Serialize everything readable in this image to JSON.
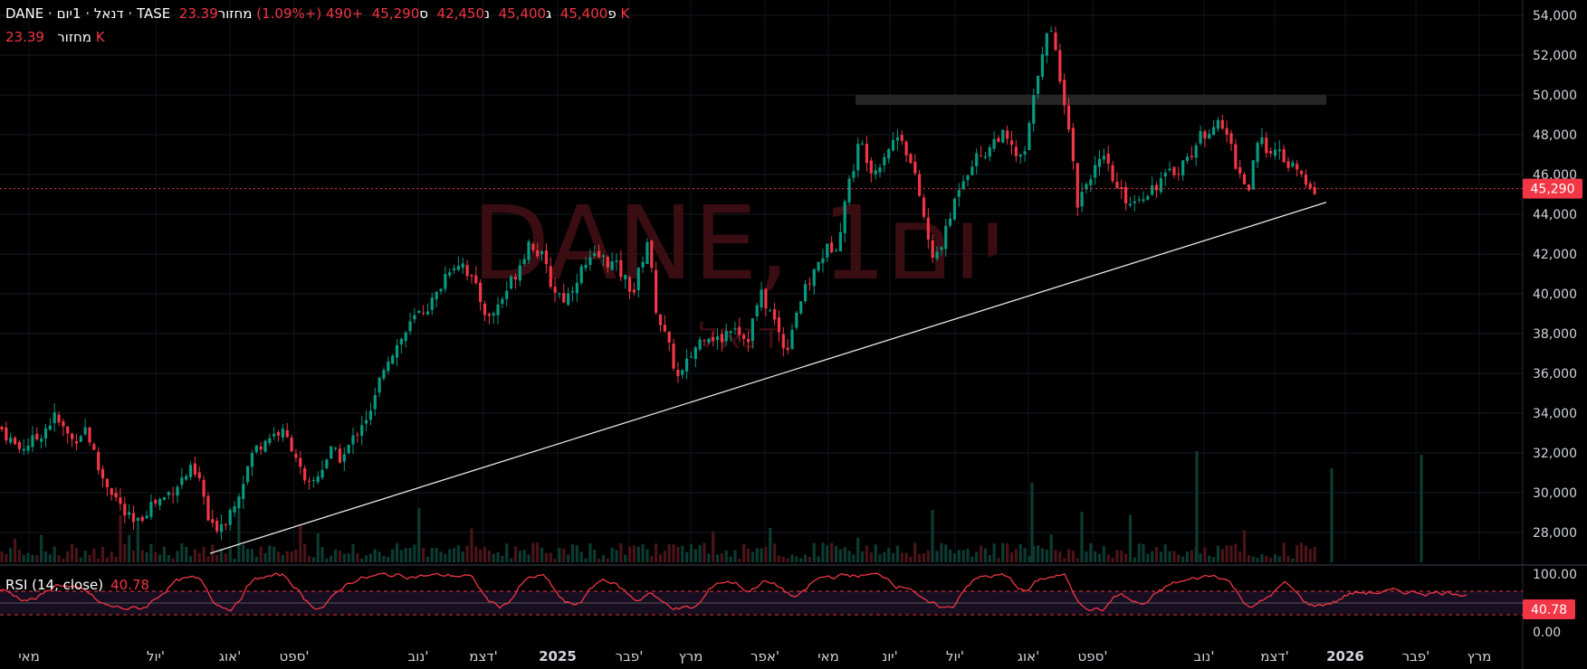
{
  "header": {
    "symbol": "DANE",
    "sep": "·",
    "name": "דנאל",
    "interval": "1יום",
    "exchange": "TASE",
    "open_label": "פ",
    "open": "45,400",
    "high_label": "ג",
    "high": "45,400",
    "low_label": "נ",
    "low": "42,450",
    "close_label": "ס",
    "close": "45,290",
    "change": "+490 (+1.09%)",
    "volume_label": "מחזור",
    "volume": "23.39 K"
  },
  "volume_line": {
    "label": "מחזור",
    "value": "23.39 K"
  },
  "watermark": {
    "title": "DANE, 1יום",
    "subtitle": "דנאל"
  },
  "price_badge": "45,290",
  "rsi": {
    "label": "RSI (14, close)",
    "value": "40.78",
    "badge": "40.78",
    "axis": [
      "100.00",
      "0.00"
    ]
  },
  "colors": {
    "up": "#089981",
    "down": "#f23645",
    "rsi": "#f23645",
    "bg": "#000000"
  },
  "chart_data": {
    "type": "candlestick",
    "symbol": "DANE",
    "y_axis_ticks": [
      "54,000",
      "52,000",
      "50,000",
      "48,000",
      "46,000",
      "44,000",
      "42,000",
      "40,000",
      "38,000",
      "36,000",
      "34,000",
      "32,000",
      "30,000",
      "28,000"
    ],
    "ylim": [
      26000,
      54500
    ],
    "x_axis_labels": [
      "מאי",
      "יול'",
      "אוג'",
      "ספט'",
      "נוב'",
      "דצמ'",
      "2025",
      "פבר'",
      "מרץ",
      "אפר'",
      "מאי",
      "יונ'",
      "יול'",
      "אוג'",
      "ספט'",
      "נוב'",
      "דצמ'",
      "2026",
      "פבר'",
      "מרץ"
    ],
    "price_path": [
      {
        "x": 0,
        "y": 33300
      },
      {
        "x": 20,
        "y": 32200
      },
      {
        "x": 40,
        "y": 32700
      },
      {
        "x": 60,
        "y": 33800
      },
      {
        "x": 80,
        "y": 32600
      },
      {
        "x": 95,
        "y": 33300
      },
      {
        "x": 110,
        "y": 31000
      },
      {
        "x": 125,
        "y": 30000
      },
      {
        "x": 138,
        "y": 28900
      },
      {
        "x": 150,
        "y": 28300
      },
      {
        "x": 165,
        "y": 29400
      },
      {
        "x": 180,
        "y": 29700
      },
      {
        "x": 195,
        "y": 30400
      },
      {
        "x": 210,
        "y": 31100
      },
      {
        "x": 222,
        "y": 30500
      },
      {
        "x": 232,
        "y": 28100
      },
      {
        "x": 250,
        "y": 28700
      },
      {
        "x": 265,
        "y": 30200
      },
      {
        "x": 280,
        "y": 32100
      },
      {
        "x": 295,
        "y": 32800
      },
      {
        "x": 310,
        "y": 33100
      },
      {
        "x": 325,
        "y": 32200
      },
      {
        "x": 338,
        "y": 30100
      },
      {
        "x": 350,
        "y": 30800
      },
      {
        "x": 365,
        "y": 32100
      },
      {
        "x": 378,
        "y": 31700
      },
      {
        "x": 390,
        "y": 32700
      },
      {
        "x": 400,
        "y": 33600
      },
      {
        "x": 410,
        "y": 34000
      },
      {
        "x": 425,
        "y": 36600
      },
      {
        "x": 440,
        "y": 37500
      },
      {
        "x": 460,
        "y": 38900
      },
      {
        "x": 480,
        "y": 39700
      },
      {
        "x": 495,
        "y": 41300
      },
      {
        "x": 510,
        "y": 41700
      },
      {
        "x": 525,
        "y": 40300
      },
      {
        "x": 540,
        "y": 38700
      },
      {
        "x": 555,
        "y": 39800
      },
      {
        "x": 570,
        "y": 41100
      },
      {
        "x": 585,
        "y": 42700
      },
      {
        "x": 600,
        "y": 41700
      },
      {
        "x": 610,
        "y": 40300
      },
      {
        "x": 625,
        "y": 39700
      },
      {
        "x": 640,
        "y": 41100
      },
      {
        "x": 660,
        "y": 41900
      },
      {
        "x": 680,
        "y": 41400
      },
      {
        "x": 700,
        "y": 40100
      },
      {
        "x": 715,
        "y": 42700
      },
      {
        "x": 725,
        "y": 39200
      },
      {
        "x": 740,
        "y": 37100
      },
      {
        "x": 750,
        "y": 35600
      },
      {
        "x": 765,
        "y": 37100
      },
      {
        "x": 780,
        "y": 38100
      },
      {
        "x": 795,
        "y": 37600
      },
      {
        "x": 810,
        "y": 38600
      },
      {
        "x": 825,
        "y": 37600
      },
      {
        "x": 840,
        "y": 40000
      },
      {
        "x": 855,
        "y": 38700
      },
      {
        "x": 868,
        "y": 37100
      },
      {
        "x": 880,
        "y": 39200
      },
      {
        "x": 895,
        "y": 40700
      },
      {
        "x": 910,
        "y": 42100
      },
      {
        "x": 925,
        "y": 42600
      },
      {
        "x": 935,
        "y": 45100
      },
      {
        "x": 950,
        "y": 47700
      },
      {
        "x": 965,
        "y": 46100
      },
      {
        "x": 980,
        "y": 47300
      },
      {
        "x": 995,
        "y": 48100
      },
      {
        "x": 1005,
        "y": 46700
      },
      {
        "x": 1015,
        "y": 45100
      },
      {
        "x": 1030,
        "y": 41600
      },
      {
        "x": 1045,
        "y": 43100
      },
      {
        "x": 1060,
        "y": 45600
      },
      {
        "x": 1075,
        "y": 46700
      },
      {
        "x": 1090,
        "y": 47200
      },
      {
        "x": 1105,
        "y": 48100
      },
      {
        "x": 1120,
        "y": 47100
      },
      {
        "x": 1130,
        "y": 46600
      },
      {
        "x": 1140,
        "y": 49200
      },
      {
        "x": 1150,
        "y": 52200
      },
      {
        "x": 1160,
        "y": 53300
      },
      {
        "x": 1170,
        "y": 51200
      },
      {
        "x": 1180,
        "y": 48700
      },
      {
        "x": 1190,
        "y": 44600
      },
      {
        "x": 1205,
        "y": 46100
      },
      {
        "x": 1220,
        "y": 46700
      },
      {
        "x": 1235,
        "y": 45100
      },
      {
        "x": 1250,
        "y": 44600
      },
      {
        "x": 1265,
        "y": 45100
      },
      {
        "x": 1280,
        "y": 45600
      },
      {
        "x": 1295,
        "y": 46100
      },
      {
        "x": 1310,
        "y": 46700
      },
      {
        "x": 1325,
        "y": 47800
      },
      {
        "x": 1340,
        "y": 48600
      },
      {
        "x": 1355,
        "y": 48100
      },
      {
        "x": 1365,
        "y": 46600
      },
      {
        "x": 1378,
        "y": 45100
      },
      {
        "x": 1390,
        "y": 47600
      },
      {
        "x": 1405,
        "y": 47300
      },
      {
        "x": 1420,
        "y": 46600
      },
      {
        "x": 1435,
        "y": 46100
      },
      {
        "x": 1445,
        "y": 45100
      },
      {
        "x": 1455,
        "y": 45290
      }
    ],
    "trendline": {
      "from": {
        "x": 232,
        "y": 26950
      },
      "to": {
        "x": 1465,
        "y": 44600
      }
    },
    "resistance_zone": {
      "x_from": 945,
      "x_to": 1465,
      "y_from": 49500,
      "y_to": 50000
    },
    "last_price": 45290,
    "rsi_series_last": 40.78,
    "rsi_ylim": [
      0,
      100
    ],
    "rsi_bands": [
      70,
      30
    ]
  }
}
